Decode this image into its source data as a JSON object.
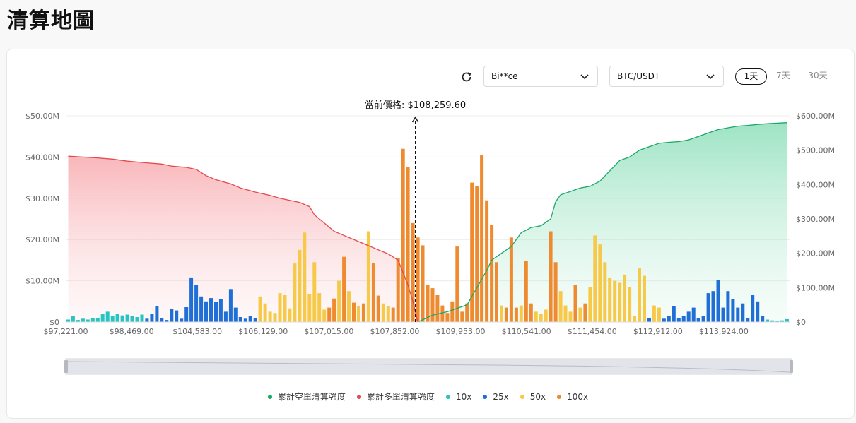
{
  "page": {
    "title": "清算地圖"
  },
  "controls": {
    "exchange": "Bi**ce",
    "pair": "BTC/USDT",
    "timeframes": [
      "1天",
      "7天",
      "30天"
    ],
    "active_timeframe": "1天"
  },
  "colors": {
    "short_cum": "#1aa868",
    "long_cum": "#e5484d",
    "lev10": "#27c4c4",
    "lev25": "#1f6fd6",
    "lev50": "#f7c948",
    "lev100": "#ee8a2f"
  },
  "chart_data": {
    "type": "bar",
    "current_price_label": "當前價格: $108,259.60",
    "x_tick_labels": [
      "$97,221.00",
      "$98,469.00",
      "$104,583.00",
      "$106,129.00",
      "$107,015.00",
      "$107,852.00",
      "$109,953.00",
      "$110,541.00",
      "$111,454.00",
      "$112,912.00",
      "$113,924.00"
    ],
    "left_axis": {
      "ticks": [
        "$0",
        "$10.00M",
        "$20.00M",
        "$30.00M",
        "$40.00M",
        "$50.00M"
      ],
      "ylim": [
        0,
        50
      ]
    },
    "right_axis": {
      "ticks": [
        "$0",
        "$100.00M",
        "$200.00M",
        "$300.00M",
        "$400.00M",
        "$500.00M",
        "$600.00M"
      ],
      "ylim": [
        0,
        600
      ]
    },
    "bar_count": 147,
    "current_price_bar": 71,
    "bars": [
      {
        "i": 0,
        "v": 0.6,
        "lev": "10x"
      },
      {
        "i": 1,
        "v": 1.5,
        "lev": "10x"
      },
      {
        "i": 2,
        "v": 0.5,
        "lev": "10x"
      },
      {
        "i": 3,
        "v": 0.8,
        "lev": "10x"
      },
      {
        "i": 4,
        "v": 0.6,
        "lev": "10x"
      },
      {
        "i": 5,
        "v": 0.9,
        "lev": "10x"
      },
      {
        "i": 6,
        "v": 1.0,
        "lev": "10x"
      },
      {
        "i": 7,
        "v": 2.0,
        "lev": "10x"
      },
      {
        "i": 8,
        "v": 2.5,
        "lev": "10x"
      },
      {
        "i": 9,
        "v": 1.5,
        "lev": "10x"
      },
      {
        "i": 10,
        "v": 2.0,
        "lev": "10x"
      },
      {
        "i": 11,
        "v": 1.6,
        "lev": "10x"
      },
      {
        "i": 12,
        "v": 1.8,
        "lev": "10x"
      },
      {
        "i": 13,
        "v": 1.5,
        "lev": "10x"
      },
      {
        "i": 14,
        "v": 1.2,
        "lev": "10x"
      },
      {
        "i": 15,
        "v": 1.8,
        "lev": "10x"
      },
      {
        "i": 16,
        "v": 0.8,
        "lev": "25x"
      },
      {
        "i": 17,
        "v": 2.0,
        "lev": "25x"
      },
      {
        "i": 18,
        "v": 3.8,
        "lev": "25x"
      },
      {
        "i": 19,
        "v": 1.0,
        "lev": "25x"
      },
      {
        "i": 20,
        "v": 0.5,
        "lev": "25x"
      },
      {
        "i": 21,
        "v": 3.2,
        "lev": "25x"
      },
      {
        "i": 22,
        "v": 2.8,
        "lev": "25x"
      },
      {
        "i": 23,
        "v": 0.8,
        "lev": "25x"
      },
      {
        "i": 24,
        "v": 3.6,
        "lev": "25x"
      },
      {
        "i": 25,
        "v": 10.8,
        "lev": "25x"
      },
      {
        "i": 26,
        "v": 9.0,
        "lev": "25x"
      },
      {
        "i": 27,
        "v": 6.2,
        "lev": "25x"
      },
      {
        "i": 28,
        "v": 5.0,
        "lev": "25x"
      },
      {
        "i": 29,
        "v": 5.8,
        "lev": "25x"
      },
      {
        "i": 30,
        "v": 4.8,
        "lev": "25x"
      },
      {
        "i": 31,
        "v": 5.5,
        "lev": "25x"
      },
      {
        "i": 32,
        "v": 2.5,
        "lev": "25x"
      },
      {
        "i": 33,
        "v": 8.0,
        "lev": "25x"
      },
      {
        "i": 34,
        "v": 3.5,
        "lev": "25x"
      },
      {
        "i": 35,
        "v": 1.2,
        "lev": "25x"
      },
      {
        "i": 36,
        "v": 0.8,
        "lev": "25x"
      },
      {
        "i": 37,
        "v": 1.5,
        "lev": "25x"
      },
      {
        "i": 38,
        "v": 1.0,
        "lev": "25x"
      },
      {
        "i": 39,
        "v": 6.2,
        "lev": "50x"
      },
      {
        "i": 40,
        "v": 4.5,
        "lev": "50x"
      },
      {
        "i": 41,
        "v": 2.5,
        "lev": "50x"
      },
      {
        "i": 42,
        "v": 2.2,
        "lev": "50x"
      },
      {
        "i": 43,
        "v": 7.0,
        "lev": "50x"
      },
      {
        "i": 44,
        "v": 6.5,
        "lev": "50x"
      },
      {
        "i": 45,
        "v": 3.3,
        "lev": "50x"
      },
      {
        "i": 46,
        "v": 14.2,
        "lev": "50x"
      },
      {
        "i": 47,
        "v": 17.5,
        "lev": "50x"
      },
      {
        "i": 48,
        "v": 21.7,
        "lev": "50x"
      },
      {
        "i": 49,
        "v": 6.8,
        "lev": "50x"
      },
      {
        "i": 50,
        "v": 14.5,
        "lev": "50x"
      },
      {
        "i": 51,
        "v": 7.0,
        "lev": "50x"
      },
      {
        "i": 52,
        "v": 3.0,
        "lev": "50x"
      },
      {
        "i": 53,
        "v": 3.5,
        "lev": "100x"
      },
      {
        "i": 54,
        "v": 5.7,
        "lev": "100x"
      },
      {
        "i": 55,
        "v": 10.0,
        "lev": "50x"
      },
      {
        "i": 56,
        "v": 15.8,
        "lev": "100x"
      },
      {
        "i": 57,
        "v": 7.5,
        "lev": "50x"
      },
      {
        "i": 58,
        "v": 4.7,
        "lev": "100x"
      },
      {
        "i": 59,
        "v": 3.8,
        "lev": "50x"
      },
      {
        "i": 60,
        "v": 4.5,
        "lev": "100x"
      },
      {
        "i": 61,
        "v": 22.0,
        "lev": "50x"
      },
      {
        "i": 62,
        "v": 14.3,
        "lev": "100x"
      },
      {
        "i": 63,
        "v": 6.4,
        "lev": "100x"
      },
      {
        "i": 64,
        "v": 4.5,
        "lev": "50x"
      },
      {
        "i": 65,
        "v": 3.8,
        "lev": "50x"
      },
      {
        "i": 66,
        "v": 3.5,
        "lev": "100x"
      },
      {
        "i": 67,
        "v": 15.6,
        "lev": "100x"
      },
      {
        "i": 68,
        "v": 42.0,
        "lev": "100x"
      },
      {
        "i": 69,
        "v": 37.5,
        "lev": "100x"
      },
      {
        "i": 70,
        "v": 24.0,
        "lev": "100x"
      },
      {
        "i": 71,
        "v": 20.5,
        "lev": "100x"
      },
      {
        "i": 72,
        "v": 18.6,
        "lev": "100x"
      },
      {
        "i": 73,
        "v": 9.0,
        "lev": "100x"
      },
      {
        "i": 74,
        "v": 8.2,
        "lev": "100x"
      },
      {
        "i": 75,
        "v": 6.5,
        "lev": "100x"
      },
      {
        "i": 76,
        "v": 4.0,
        "lev": "100x"
      },
      {
        "i": 77,
        "v": 2.2,
        "lev": "100x"
      },
      {
        "i": 78,
        "v": 5.0,
        "lev": "100x"
      },
      {
        "i": 79,
        "v": 18.3,
        "lev": "100x"
      },
      {
        "i": 80,
        "v": 2.5,
        "lev": "100x"
      },
      {
        "i": 81,
        "v": 4.5,
        "lev": "100x"
      },
      {
        "i": 82,
        "v": 33.8,
        "lev": "100x"
      },
      {
        "i": 83,
        "v": 33.0,
        "lev": "100x"
      },
      {
        "i": 84,
        "v": 40.5,
        "lev": "100x"
      },
      {
        "i": 85,
        "v": 29.5,
        "lev": "100x"
      },
      {
        "i": 86,
        "v": 23.5,
        "lev": "100x"
      },
      {
        "i": 87,
        "v": 14.5,
        "lev": "100x"
      },
      {
        "i": 88,
        "v": 4.0,
        "lev": "50x"
      },
      {
        "i": 89,
        "v": 3.5,
        "lev": "100x"
      },
      {
        "i": 90,
        "v": 20.5,
        "lev": "100x"
      },
      {
        "i": 91,
        "v": 3.5,
        "lev": "100x"
      },
      {
        "i": 92,
        "v": 4.0,
        "lev": "50x"
      },
      {
        "i": 93,
        "v": 14.8,
        "lev": "100x"
      },
      {
        "i": 94,
        "v": 4.5,
        "lev": "100x"
      },
      {
        "i": 95,
        "v": 2.5,
        "lev": "50x"
      },
      {
        "i": 96,
        "v": 2.0,
        "lev": "50x"
      },
      {
        "i": 97,
        "v": 3.0,
        "lev": "50x"
      },
      {
        "i": 98,
        "v": 22.0,
        "lev": "100x"
      },
      {
        "i": 99,
        "v": 14.5,
        "lev": "100x"
      },
      {
        "i": 100,
        "v": 7.5,
        "lev": "50x"
      },
      {
        "i": 101,
        "v": 4.0,
        "lev": "50x"
      },
      {
        "i": 102,
        "v": 2.5,
        "lev": "50x"
      },
      {
        "i": 103,
        "v": 9.0,
        "lev": "100x"
      },
      {
        "i": 104,
        "v": 3.5,
        "lev": "50x"
      },
      {
        "i": 105,
        "v": 4.5,
        "lev": "100x"
      },
      {
        "i": 106,
        "v": 8.5,
        "lev": "50x"
      },
      {
        "i": 107,
        "v": 21.0,
        "lev": "50x"
      },
      {
        "i": 108,
        "v": 18.8,
        "lev": "50x"
      },
      {
        "i": 109,
        "v": 14.5,
        "lev": "50x"
      },
      {
        "i": 110,
        "v": 10.8,
        "lev": "50x"
      },
      {
        "i": 111,
        "v": 10.0,
        "lev": "50x"
      },
      {
        "i": 112,
        "v": 9.5,
        "lev": "50x"
      },
      {
        "i": 113,
        "v": 11.5,
        "lev": "50x"
      },
      {
        "i": 114,
        "v": 8.5,
        "lev": "50x"
      },
      {
        "i": 115,
        "v": 1.5,
        "lev": "50x"
      },
      {
        "i": 116,
        "v": 13.0,
        "lev": "50x"
      },
      {
        "i": 117,
        "v": 11.2,
        "lev": "50x"
      },
      {
        "i": 118,
        "v": 1.0,
        "lev": "25x"
      },
      {
        "i": 119,
        "v": 4.0,
        "lev": "50x"
      },
      {
        "i": 120,
        "v": 3.5,
        "lev": "50x"
      },
      {
        "i": 121,
        "v": 0.8,
        "lev": "25x"
      },
      {
        "i": 122,
        "v": 1.5,
        "lev": "25x"
      },
      {
        "i": 123,
        "v": 3.8,
        "lev": "25x"
      },
      {
        "i": 124,
        "v": 1.0,
        "lev": "25x"
      },
      {
        "i": 125,
        "v": 1.5,
        "lev": "25x"
      },
      {
        "i": 126,
        "v": 2.5,
        "lev": "25x"
      },
      {
        "i": 127,
        "v": 3.5,
        "lev": "25x"
      },
      {
        "i": 128,
        "v": 1.0,
        "lev": "25x"
      },
      {
        "i": 129,
        "v": 1.5,
        "lev": "25x"
      },
      {
        "i": 130,
        "v": 7.0,
        "lev": "25x"
      },
      {
        "i": 131,
        "v": 7.5,
        "lev": "25x"
      },
      {
        "i": 132,
        "v": 10.2,
        "lev": "25x"
      },
      {
        "i": 133,
        "v": 3.5,
        "lev": "25x"
      },
      {
        "i": 134,
        "v": 7.5,
        "lev": "25x"
      },
      {
        "i": 135,
        "v": 5.5,
        "lev": "25x"
      },
      {
        "i": 136,
        "v": 3.5,
        "lev": "25x"
      },
      {
        "i": 137,
        "v": 4.5,
        "lev": "25x"
      },
      {
        "i": 138,
        "v": 1.0,
        "lev": "25x"
      },
      {
        "i": 139,
        "v": 6.5,
        "lev": "25x"
      },
      {
        "i": 140,
        "v": 5.0,
        "lev": "25x"
      },
      {
        "i": 141,
        "v": 1.5,
        "lev": "25x"
      },
      {
        "i": 142,
        "v": 0.6,
        "lev": "10x"
      },
      {
        "i": 143,
        "v": 0.4,
        "lev": "10x"
      },
      {
        "i": 144,
        "v": 0.3,
        "lev": "10x"
      },
      {
        "i": 145,
        "v": 0.4,
        "lev": "10x"
      },
      {
        "i": 146,
        "v": 0.7,
        "lev": "10x"
      }
    ],
    "cum_long": {
      "name": "累計多單清算強度",
      "points": [
        [
          0,
          40.2
        ],
        [
          3,
          40.0
        ],
        [
          6,
          39.8
        ],
        [
          9,
          39.5
        ],
        [
          12,
          39.0
        ],
        [
          16,
          38.6
        ],
        [
          19,
          38.3
        ],
        [
          21,
          37.8
        ],
        [
          24,
          37.5
        ],
        [
          26,
          37.0
        ],
        [
          28,
          35.5
        ],
        [
          30,
          34.5
        ],
        [
          33,
          33.5
        ],
        [
          35,
          32.5
        ],
        [
          38,
          31.5
        ],
        [
          41,
          30.7
        ],
        [
          43,
          30.0
        ],
        [
          45,
          29.5
        ],
        [
          47,
          29.0
        ],
        [
          49,
          28.0
        ],
        [
          50,
          26.0
        ],
        [
          52,
          24.0
        ],
        [
          54,
          22.0
        ],
        [
          57,
          20.5
        ],
        [
          60,
          19.0
        ],
        [
          63,
          17.5
        ],
        [
          65,
          16.5
        ],
        [
          67,
          15.0
        ],
        [
          68,
          12.0
        ],
        [
          69,
          9.0
        ],
        [
          70,
          5.0
        ],
        [
          71,
          0.0
        ]
      ]
    },
    "cum_short": {
      "name": "累計空單清算強度",
      "points": [
        [
          71,
          0
        ],
        [
          74,
          20
        ],
        [
          77,
          30
        ],
        [
          79,
          40
        ],
        [
          81,
          50
        ],
        [
          83,
          100
        ],
        [
          85,
          150
        ],
        [
          86,
          180
        ],
        [
          88,
          200
        ],
        [
          90,
          220
        ],
        [
          92,
          260
        ],
        [
          94,
          275
        ],
        [
          96,
          280
        ],
        [
          97,
          290
        ],
        [
          98,
          300
        ],
        [
          99,
          350
        ],
        [
          100,
          370
        ],
        [
          102,
          380
        ],
        [
          104,
          390
        ],
        [
          106,
          395
        ],
        [
          108,
          410
        ],
        [
          110,
          440
        ],
        [
          112,
          470
        ],
        [
          114,
          480
        ],
        [
          116,
          500
        ],
        [
          118,
          510
        ],
        [
          120,
          520
        ],
        [
          122,
          523
        ],
        [
          124,
          525
        ],
        [
          126,
          530
        ],
        [
          128,
          540
        ],
        [
          130,
          550
        ],
        [
          132,
          560
        ],
        [
          134,
          565
        ],
        [
          136,
          570
        ],
        [
          138,
          572
        ],
        [
          140,
          575
        ],
        [
          142,
          577
        ],
        [
          146,
          580
        ]
      ]
    },
    "legend": [
      "累計空單清算強度",
      "累計多單清算強度",
      "10x",
      "25x",
      "50x",
      "100x"
    ]
  }
}
